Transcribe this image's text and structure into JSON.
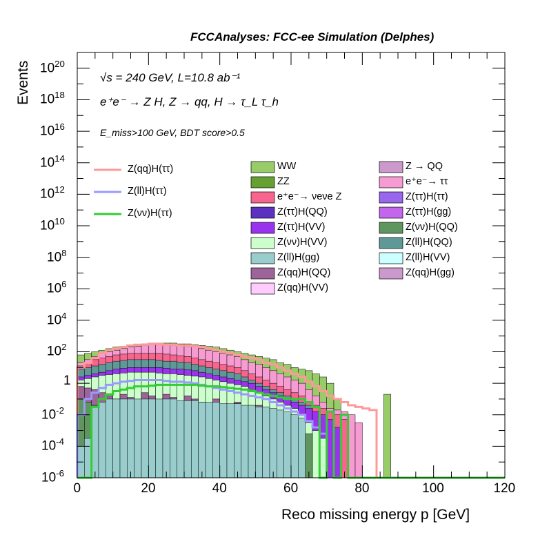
{
  "header": {
    "title": "FCCAnalyses: FCC-ee Simulation (Delphes)"
  },
  "annotations": [
    "√s = 240 GeV, L=10.8 ab⁻¹",
    "e⁺e⁻ → Z H, Z → qq, H → τ_L τ_h",
    "E_miss>100 GeV, BDT score>0.5"
  ],
  "chart_data": {
    "type": "histogram",
    "xlabel": "Reco missing energy p [GeV]",
    "ylabel": "Events",
    "xlim": [
      0,
      120
    ],
    "ylim": [
      1e-06,
      1e+21
    ],
    "log_y": true,
    "x_tick_labels": [
      "0",
      "20",
      "40",
      "60",
      "80",
      "100",
      "120"
    ],
    "y_tick_exponents": [
      -6,
      -4,
      -2,
      0,
      2,
      4,
      6,
      8,
      10,
      12,
      14,
      16,
      18,
      20
    ],
    "bin_width": 2,
    "stacked_legend": [
      {
        "name": "WW",
        "color": "#98cc68"
      },
      {
        "name": "Z → QQ",
        "color": "#cc99cc"
      },
      {
        "name": "ZZ",
        "color": "#66a032"
      },
      {
        "name": "e⁺e⁻→ ττ",
        "color": "#f79cd2"
      },
      {
        "name": "e⁺e⁻→ νeνe Z",
        "color": "#f7658e"
      },
      {
        "name": "Z(ττ)H(ττ)",
        "color": "#9966ee"
      },
      {
        "name": "Z(ττ)H(QQ)",
        "color": "#5b31c0"
      },
      {
        "name": "Z(ττ)H(gg)",
        "color": "#c366ee"
      },
      {
        "name": "Z(ττ)H(VV)",
        "color": "#9933ee"
      },
      {
        "name": "Z(νν)H(QQ)",
        "color": "#5f9660"
      },
      {
        "name": "Z(νν)H(VV)",
        "color": "#ccffcc"
      },
      {
        "name": "Z(ll)H(QQ)",
        "color": "#5f9997"
      },
      {
        "name": "Z(ll)H(gg)",
        "color": "#99cccc"
      },
      {
        "name": "Z(ll)H(VV)",
        "color": "#ccffff"
      },
      {
        "name": "Z(qq)H(QQ)",
        "color": "#9c6499"
      },
      {
        "name": "Z(qq)H(gg)",
        "color": "#cc99cc"
      },
      {
        "name": "Z(qq)H(VV)",
        "color": "#ffccff"
      }
    ],
    "signal_legend": [
      {
        "name": "Z(qq)H(ττ)",
        "color": "#ff9999"
      },
      {
        "name": "Z(ll)H(ττ)",
        "color": "#9999ff"
      },
      {
        "name": "Z(νν)H(ττ)",
        "color": "#33cc33"
      }
    ],
    "stack_envelopes_log10": [
      {
        "color": "#98cc68",
        "values": [
          1.8,
          1.9,
          2.0,
          2.1,
          2.2,
          2.3,
          2.35,
          2.4,
          2.45,
          2.5,
          2.55,
          2.55,
          2.55,
          2.55,
          2.5,
          2.5,
          2.45,
          2.4,
          2.35,
          2.3,
          2.2,
          2.1,
          2.0,
          1.9,
          1.8,
          1.7,
          1.6,
          1.5,
          1.3,
          1.2,
          1.0,
          0.9,
          0.8,
          0.6,
          0.4,
          0.0,
          -1.0,
          null,
          null,
          null,
          null,
          null,
          null,
          -0.7,
          null,
          null,
          null,
          null,
          null,
          null,
          null,
          null,
          null,
          null,
          null,
          null,
          null,
          null,
          null,
          null
        ]
      },
      {
        "color": "#f79cd2",
        "values": [
          1.3,
          1.5,
          1.7,
          1.9,
          2.0,
          2.1,
          2.2,
          2.3,
          2.35,
          2.4,
          2.45,
          2.45,
          2.45,
          2.4,
          2.4,
          2.35,
          2.3,
          2.2,
          2.1,
          2.0,
          1.9,
          1.8,
          1.7,
          1.5,
          1.3,
          1.2,
          1.0,
          0.8,
          0.6,
          0.4,
          0.2,
          0.0,
          -0.4,
          -0.8,
          -1.2,
          -1.6,
          -1.7,
          -1.8,
          -2.0,
          -2.5,
          null,
          null,
          null,
          null,
          null,
          null,
          null,
          null,
          null,
          null,
          null,
          null,
          null,
          null,
          null,
          null,
          null,
          null,
          null,
          null
        ]
      },
      {
        "color": "#f7658e",
        "values": [
          1.1,
          1.3,
          1.5,
          1.6,
          1.7,
          1.8,
          1.85,
          1.9,
          1.9,
          1.9,
          1.9,
          1.9,
          1.85,
          1.8,
          1.75,
          1.7,
          1.6,
          1.5,
          1.4,
          1.3,
          1.2,
          1.1,
          1.0,
          0.8,
          0.6,
          0.4,
          0.2,
          0.0,
          -0.2,
          -0.4,
          -0.6,
          -0.8,
          -1.2,
          -1.4,
          -1.6,
          -1.8,
          -2.0,
          -2.3,
          null,
          null,
          null,
          null,
          null,
          null,
          null,
          null,
          null,
          null,
          null,
          null,
          null,
          null,
          null,
          null,
          null,
          null,
          null,
          null,
          null,
          null
        ]
      },
      {
        "color": "#5f9997",
        "values": [
          0.9,
          1.0,
          1.1,
          1.2,
          1.3,
          1.4,
          1.45,
          1.5,
          1.5,
          1.5,
          1.5,
          1.45,
          1.4,
          1.4,
          1.35,
          1.3,
          1.2,
          1.1,
          1.0,
          0.9,
          0.8,
          0.7,
          0.6,
          0.4,
          0.2,
          0.0,
          -0.2,
          -0.4,
          -0.6,
          -0.8,
          -1.0,
          -1.2,
          -1.4,
          -1.8,
          null,
          null,
          null,
          null,
          null,
          null,
          null,
          null,
          null,
          null,
          null,
          null,
          null,
          null,
          null,
          null,
          null,
          null,
          null,
          null,
          null,
          null,
          null,
          null,
          null,
          null
        ]
      },
      {
        "color": "#9933ee",
        "values": [
          0.4,
          0.5,
          0.6,
          0.7,
          0.8,
          0.9,
          0.95,
          1.0,
          1.0,
          1.0,
          1.0,
          1.0,
          0.95,
          0.9,
          0.9,
          0.85,
          0.8,
          0.7,
          0.6,
          0.5,
          0.4,
          0.3,
          0.2,
          0.1,
          0.0,
          -0.2,
          -0.4,
          -0.6,
          -0.8,
          -1.0,
          -1.2,
          -1.4,
          -1.6,
          -1.8,
          -2.0,
          -2.3,
          -2.8,
          null,
          null,
          null,
          null,
          null,
          null,
          null,
          null,
          null,
          null,
          null,
          null,
          null,
          null,
          null,
          null,
          null,
          null,
          null,
          null,
          null,
          null,
          null
        ]
      },
      {
        "color": "#ccffcc",
        "values": [
          0.2,
          0.3,
          0.4,
          0.5,
          0.55,
          0.6,
          0.65,
          0.7,
          0.7,
          0.7,
          0.7,
          0.65,
          0.6,
          0.6,
          0.55,
          0.5,
          0.45,
          0.4,
          0.3,
          0.2,
          0.1,
          0.0,
          -0.1,
          -0.2,
          -0.4,
          -0.6,
          -0.8,
          -1.0,
          -1.2,
          -1.4,
          -1.6,
          -2.0,
          -2.5,
          -3.0,
          -3.5,
          null,
          null,
          null,
          null,
          null,
          null,
          null,
          null,
          null,
          null,
          null,
          null,
          null,
          null,
          null,
          null,
          null,
          null,
          null,
          null,
          null,
          null,
          null,
          null,
          null
        ]
      },
      {
        "color": "#9c6499",
        "values": [
          -0.2,
          -0.3,
          -0.4,
          -0.6,
          -0.8,
          -1.0,
          -0.7,
          -0.9,
          -1.2,
          -0.6,
          -0.8,
          -1.1,
          -0.7,
          -0.9,
          -1.3,
          -0.8,
          -1.0,
          -1.2,
          -1.5,
          -1.0,
          -1.3,
          -1.6,
          -1.2,
          -1.5,
          -1.8,
          -1.4,
          -1.7,
          -2.0,
          -2.2,
          -2.5,
          -2.8,
          -3.0,
          null,
          null,
          null,
          null,
          null,
          null,
          null,
          null,
          null,
          null,
          null,
          null,
          null,
          null,
          null,
          null,
          null,
          null,
          null,
          null,
          null,
          null,
          null,
          null,
          null,
          null,
          null,
          null
        ]
      },
      {
        "color": "#5f9660",
        "values": [
          -1.0,
          -1.2,
          -1.4,
          -1.3,
          -1.5,
          -1.2,
          -1.6,
          -1.4,
          -1.7,
          -1.3,
          -1.5,
          -1.8,
          -1.4,
          -1.6,
          -1.9,
          -1.5,
          -1.7,
          -2.0,
          -1.6,
          -1.8,
          -2.1,
          -1.7,
          -1.9,
          -2.2,
          -1.8,
          -2.0,
          -2.3,
          -2.1,
          -2.4,
          -2.6,
          -2.8,
          -3.0,
          -3.2,
          null,
          null,
          null,
          null,
          null,
          null,
          null,
          null,
          null,
          null,
          null,
          null,
          null,
          null,
          null,
          null,
          null,
          null,
          null,
          null,
          null,
          null,
          null,
          null,
          null,
          null,
          null
        ]
      },
      {
        "color": "#99cccc",
        "values": [
          -4.0,
          -3.5,
          -1.5,
          -1.2,
          -1.0,
          -1.0,
          -1.0,
          -1.0,
          -1.0,
          -1.0,
          -1.0,
          -1.0,
          -1.0,
          -1.0,
          -1.1,
          -1.1,
          -1.1,
          -1.2,
          -1.2,
          -1.2,
          -1.3,
          -1.3,
          -1.3,
          -1.4,
          -1.4,
          -1.5,
          -1.5,
          -1.6,
          -1.7,
          -1.8,
          -2.0,
          -2.2,
          null,
          null,
          null,
          null,
          null,
          null,
          null,
          null,
          null,
          null,
          null,
          null,
          null,
          null,
          null,
          null,
          null,
          null,
          null,
          null,
          null,
          null,
          null,
          null,
          null,
          null,
          null,
          null
        ]
      }
    ],
    "signal_steps_log10": [
      {
        "name": "Z(qq)H(ττ)",
        "color": "#ff9999",
        "values": [
          1.0,
          1.3,
          1.6,
          1.9,
          2.1,
          2.2,
          2.3,
          2.4,
          2.45,
          2.45,
          2.5,
          2.5,
          2.45,
          2.45,
          2.4,
          2.4,
          2.35,
          2.3,
          2.2,
          2.1,
          2.0,
          1.9,
          1.8,
          1.7,
          1.6,
          1.5,
          1.3,
          1.2,
          1.0,
          0.8,
          0.6,
          0.4,
          0.1,
          -0.2,
          -0.5,
          -0.8,
          -1.0,
          -1.2,
          -1.4,
          -1.5,
          -1.6,
          -1.7,
          null,
          null,
          null,
          null,
          null,
          null,
          null,
          null,
          null,
          null,
          null,
          null,
          null,
          null,
          null,
          null,
          null,
          null
        ]
      },
      {
        "name": "Z(ll)H(ττ)",
        "color": "#9999ff",
        "values": [
          -2.0,
          -1.0,
          -0.6,
          -0.3,
          -0.1,
          0.0,
          0.1,
          0.15,
          0.2,
          0.2,
          0.2,
          0.2,
          0.15,
          0.1,
          0.1,
          0.05,
          0.0,
          -0.1,
          -0.2,
          -0.3,
          -0.4,
          -0.5,
          -0.6,
          -0.7,
          -0.8,
          -0.9,
          -1.0,
          -1.2,
          -1.4,
          -1.6,
          -1.8,
          -2.0,
          -2.4,
          -2.8,
          -3.2,
          null,
          null,
          null,
          null,
          null,
          null,
          null,
          null,
          null,
          null,
          null,
          null,
          null,
          null,
          null,
          null,
          null,
          null,
          null,
          null,
          null,
          null,
          null,
          null,
          null
        ]
      },
      {
        "name": "Z(νν)H(ττ)",
        "color": "#33cc33",
        "values": [
          -6.0,
          -6.0,
          -1.5,
          -1.0,
          -0.7,
          -0.5,
          -0.4,
          -0.3,
          -0.2,
          -0.2,
          -0.15,
          -0.1,
          -0.1,
          -0.1,
          -0.1,
          -0.1,
          -0.1,
          -0.15,
          -0.2,
          -0.2,
          -0.25,
          -0.3,
          -0.35,
          -0.4,
          -0.5,
          -0.6,
          -0.7,
          -0.8,
          -0.9,
          -1.0,
          -1.0,
          -1.0,
          -1.2,
          -1.5,
          -6.0,
          -1.8,
          -6.0,
          -2.0,
          -6.0,
          -6.0,
          -6.0,
          -6.0,
          -6.0,
          -6.0,
          -6.0,
          -6.0,
          -6.0,
          -6.0,
          -6.0,
          -6.0,
          -6.0,
          -6.0,
          -6.0,
          -6.0,
          -6.0,
          -6.0,
          -6.0,
          -6.0,
          -6.0,
          -6.0
        ]
      }
    ]
  }
}
